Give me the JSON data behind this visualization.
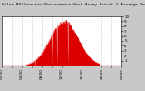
{
  "title": "Solar PV/Inverter Performance West Array Actual & Average Power Output",
  "bg_color": "#c8c8c8",
  "plot_bg": "#ffffff",
  "fill_color": "#dd0000",
  "grid_color": "#888888",
  "title_color": "#000000",
  "tick_color": "#000000",
  "num_points": 288,
  "peak_kw": 9.0,
  "ylim": [
    0,
    10
  ],
  "xlim_hours": [
    0,
    24
  ],
  "title_fontsize": 3.2,
  "tick_fontsize": 3.0,
  "ytick_values": [
    1,
    2,
    3,
    4,
    5,
    6,
    7,
    8,
    9,
    10
  ],
  "xtick_hours": [
    0,
    2,
    4,
    6,
    8,
    10,
    12,
    14,
    16,
    18,
    20,
    22,
    24
  ],
  "noise_scale": 0.25,
  "dropout_indices": [
    80,
    120,
    132,
    158
  ]
}
